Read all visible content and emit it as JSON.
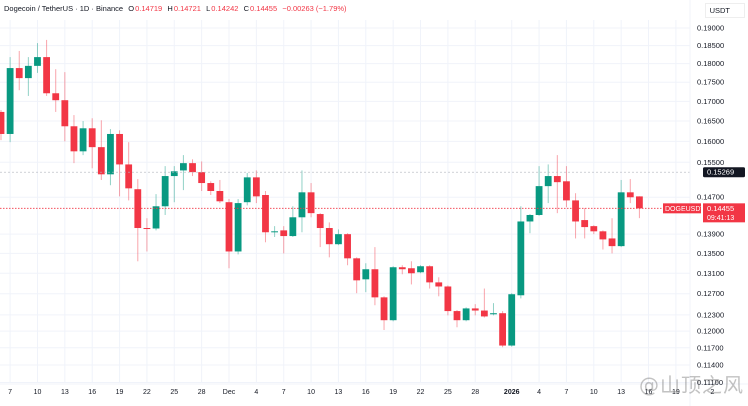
{
  "header": {
    "symbol": "Dogecoin / TetherUS · 1D · Binance",
    "o_label": "O",
    "o": "0.14719",
    "h_label": "H",
    "h": "0.14721",
    "l_label": "L",
    "l": "0.14242",
    "c_label": "C",
    "c": "0.14455",
    "change": "−0.00263 (−1.79%)"
  },
  "axis_unit": "USDT",
  "watermark": "@山顶之风",
  "colors": {
    "up": "#089981",
    "down": "#F23645",
    "grid": "#f0f3fa",
    "text": "#131722"
  },
  "price_labels": {
    "current_symbol": "DOGEUSDT",
    "current_price": "0.14455",
    "countdown": "09:41:13",
    "crosshair_price": "0.15269"
  },
  "chart_data": {
    "type": "candlestick",
    "scale": "log",
    "y_ticks": [
      "0.19000",
      "0.18500",
      "0.18000",
      "0.17500",
      "0.17000",
      "0.16500",
      "0.16000",
      "0.15500",
      "0.14700",
      "0.13900",
      "0.13500",
      "0.13100",
      "0.12700",
      "0.12300",
      "0.12000",
      "0.11700",
      "0.11400",
      "0.11100"
    ],
    "x_ticks": [
      {
        "i": 1,
        "label": "7"
      },
      {
        "i": 4,
        "label": "10"
      },
      {
        "i": 7,
        "label": "13"
      },
      {
        "i": 10,
        "label": "16"
      },
      {
        "i": 13,
        "label": "19"
      },
      {
        "i": 16,
        "label": "22"
      },
      {
        "i": 19,
        "label": "25"
      },
      {
        "i": 22,
        "label": "28"
      },
      {
        "i": 25,
        "label": "Dec"
      },
      {
        "i": 28,
        "label": "4"
      },
      {
        "i": 31,
        "label": "7"
      },
      {
        "i": 34,
        "label": "10"
      },
      {
        "i": 37,
        "label": "13"
      },
      {
        "i": 40,
        "label": "16"
      },
      {
        "i": 43,
        "label": "19"
      },
      {
        "i": 46,
        "label": "22"
      },
      {
        "i": 49,
        "label": "25"
      },
      {
        "i": 52,
        "label": "28"
      },
      {
        "i": 56,
        "label": "2026",
        "bold": true
      },
      {
        "i": 59,
        "label": "4"
      },
      {
        "i": 62,
        "label": "7"
      },
      {
        "i": 65,
        "label": "10"
      },
      {
        "i": 68,
        "label": "13"
      },
      {
        "i": 71,
        "label": "16"
      },
      {
        "i": 74,
        "label": "19"
      },
      {
        "i": 78,
        "label": "2"
      }
    ],
    "ohlc": [
      [
        0.1673,
        0.1678,
        0.1603,
        0.1618
      ],
      [
        0.1618,
        0.1818,
        0.1598,
        0.1788
      ],
      [
        0.1788,
        0.1835,
        0.1729,
        0.1761
      ],
      [
        0.1761,
        0.1818,
        0.1714,
        0.1794
      ],
      [
        0.1794,
        0.1857,
        0.1775,
        0.1818
      ],
      [
        0.1818,
        0.1866,
        0.1714,
        0.1721
      ],
      [
        0.1721,
        0.1785,
        0.1673,
        0.1703
      ],
      [
        0.1703,
        0.1777,
        0.16,
        0.1637
      ],
      [
        0.1637,
        0.1665,
        0.1548,
        0.1576
      ],
      [
        0.1576,
        0.165,
        0.1567,
        0.1632
      ],
      [
        0.1632,
        0.1657,
        0.1536,
        0.1586
      ],
      [
        0.1586,
        0.1652,
        0.1509,
        0.1522
      ],
      [
        0.1522,
        0.163,
        0.1497,
        0.1618
      ],
      [
        0.1618,
        0.1627,
        0.1472,
        0.1545
      ],
      [
        0.1545,
        0.1598,
        0.1463,
        0.149
      ],
      [
        0.1488,
        0.1511,
        0.1334,
        0.1403
      ],
      [
        0.1403,
        0.1424,
        0.1354,
        0.1402
      ],
      [
        0.1402,
        0.1477,
        0.1398,
        0.145
      ],
      [
        0.145,
        0.1541,
        0.1431,
        0.1518
      ],
      [
        0.1518,
        0.1541,
        0.1459,
        0.1529
      ],
      [
        0.1531,
        0.1567,
        0.1486,
        0.1548
      ],
      [
        0.1548,
        0.1557,
        0.1518,
        0.1527
      ],
      [
        0.1527,
        0.1552,
        0.1484,
        0.1502
      ],
      [
        0.1502,
        0.1506,
        0.1475,
        0.1484
      ],
      [
        0.1484,
        0.1509,
        0.1457,
        0.1461
      ],
      [
        0.1459,
        0.1466,
        0.132,
        0.1354
      ],
      [
        0.1354,
        0.1466,
        0.1348,
        0.1457
      ],
      [
        0.1459,
        0.1525,
        0.1452,
        0.1515
      ],
      [
        0.1515,
        0.1531,
        0.1457,
        0.1472
      ],
      [
        0.1475,
        0.1484,
        0.1373,
        0.1394
      ],
      [
        0.1394,
        0.1407,
        0.1384,
        0.1396
      ],
      [
        0.1398,
        0.1407,
        0.135,
        0.1386
      ],
      [
        0.1386,
        0.145,
        0.1384,
        0.1426
      ],
      [
        0.1426,
        0.1531,
        0.1394,
        0.1481
      ],
      [
        0.1481,
        0.1502,
        0.1426,
        0.1435
      ],
      [
        0.1433,
        0.1435,
        0.1363,
        0.1403
      ],
      [
        0.1403,
        0.1415,
        0.1342,
        0.1369
      ],
      [
        0.1369,
        0.14,
        0.1367,
        0.139
      ],
      [
        0.139,
        0.1392,
        0.1326,
        0.134
      ],
      [
        0.134,
        0.1342,
        0.1271,
        0.1296
      ],
      [
        0.1298,
        0.133,
        0.1273,
        0.1318
      ],
      [
        0.1318,
        0.1363,
        0.1248,
        0.1263
      ],
      [
        0.1263,
        0.1265,
        0.1202,
        0.122
      ],
      [
        0.122,
        0.1324,
        0.1218,
        0.1322
      ],
      [
        0.1322,
        0.1326,
        0.1308,
        0.1318
      ],
      [
        0.132,
        0.1334,
        0.1288,
        0.131
      ],
      [
        0.1312,
        0.1326,
        0.131,
        0.1324
      ],
      [
        0.1324,
        0.1326,
        0.128,
        0.1292
      ],
      [
        0.1292,
        0.1302,
        0.1265,
        0.1284
      ],
      [
        0.1284,
        0.1286,
        0.1229,
        0.1237
      ],
      [
        0.1237,
        0.1239,
        0.1207,
        0.122
      ],
      [
        0.122,
        0.1244,
        0.1218,
        0.1242
      ],
      [
        0.1242,
        0.125,
        0.1229,
        0.1238
      ],
      [
        0.1238,
        0.128,
        0.1225,
        0.1227
      ],
      [
        0.1231,
        0.1252,
        0.1229,
        0.1233
      ],
      [
        0.1233,
        0.1237,
        0.1171,
        0.1174
      ],
      [
        0.1174,
        0.1271,
        0.1172,
        0.1269
      ],
      [
        0.1267,
        0.145,
        0.1261,
        0.1417
      ],
      [
        0.1417,
        0.1433,
        0.1392,
        0.1431
      ],
      [
        0.1431,
        0.1541,
        0.1429,
        0.1495
      ],
      [
        0.1495,
        0.1545,
        0.1457,
        0.1518
      ],
      [
        0.1518,
        0.1567,
        0.1435,
        0.1504
      ],
      [
        0.1506,
        0.1541,
        0.1448,
        0.1463
      ],
      [
        0.1463,
        0.1479,
        0.1381,
        0.1417
      ],
      [
        0.142,
        0.1446,
        0.1381,
        0.1405
      ],
      [
        0.1407,
        0.1409,
        0.139,
        0.1396
      ],
      [
        0.1396,
        0.1398,
        0.1358,
        0.1379
      ],
      [
        0.1381,
        0.1424,
        0.135,
        0.1365
      ],
      [
        0.1365,
        0.1509,
        0.1363,
        0.1481
      ],
      [
        0.1481,
        0.1511,
        0.1457,
        0.147
      ],
      [
        0.14719,
        0.14721,
        0.14242,
        0.14455
      ]
    ],
    "current_price": 0.14455,
    "crosshair_price": 0.15269
  }
}
